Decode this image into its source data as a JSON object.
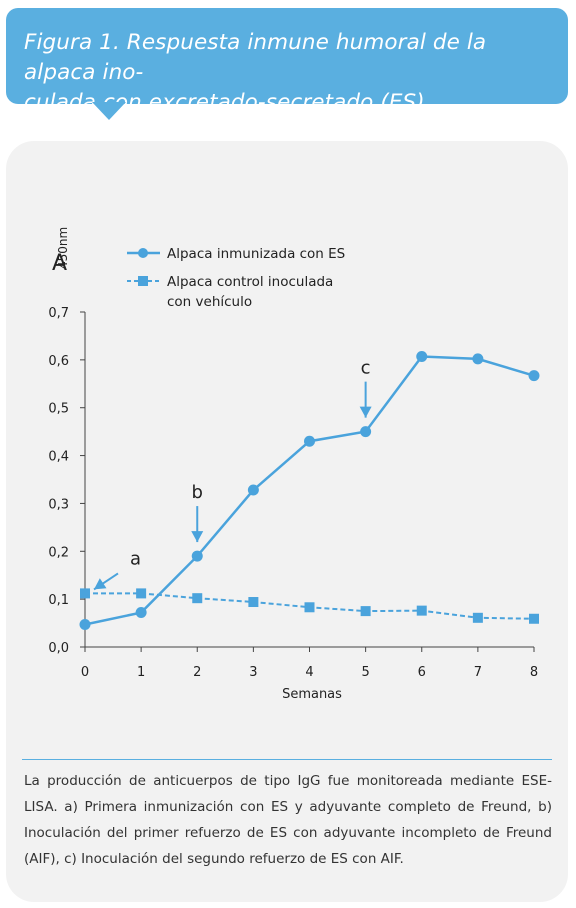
{
  "header": {
    "title_line1": "Figura 1. Respuesta inmune humoral de la alpaca ino-",
    "title_line2": "culada con excretado-secretado (ES)."
  },
  "colors": {
    "accent": "#5aafe0",
    "panel": "#f2f2f2",
    "series": "#4aa3dc"
  },
  "chart_data": {
    "type": "line",
    "ylabel_main": "A",
    "ylabel_sub": "450nm",
    "xlabel": "Semanas",
    "xlim": [
      0,
      8
    ],
    "ylim": [
      0,
      0.7
    ],
    "xticks": [
      "0",
      "1",
      "2",
      "3",
      "4",
      "5",
      "6",
      "7",
      "8"
    ],
    "yticks": [
      "0,0",
      "0,1",
      "0,2",
      "0,3",
      "0,4",
      "0,5",
      "0,6",
      "0,7"
    ],
    "yvalues": [
      0,
      0.1,
      0.2,
      0.3,
      0.4,
      0.5,
      0.6,
      0.7
    ],
    "legend_position": "top-left",
    "series": [
      {
        "name": "Alpaca inmunizada con ES",
        "marker": "circle",
        "style": "solid",
        "x": [
          0,
          1,
          2,
          3,
          4,
          5,
          6,
          7,
          8
        ],
        "y": [
          0.047,
          0.072,
          0.19,
          0.328,
          0.43,
          0.45,
          0.607,
          0.602,
          0.567
        ]
      },
      {
        "name_line1": "Alpaca control inoculada",
        "name_line2": "con vehículo",
        "marker": "square",
        "style": "dashed",
        "x": [
          0,
          1,
          2,
          3,
          4,
          5,
          6,
          7,
          8
        ],
        "y": [
          0.112,
          0.112,
          0.102,
          0.094,
          0.083,
          0.075,
          0.076,
          0.061,
          0.059
        ]
      }
    ],
    "annotations": [
      {
        "label": "a",
        "x": 0,
        "y": 0.112,
        "direction": "diagonal"
      },
      {
        "label": "b",
        "x": 2,
        "y": 0.19,
        "direction": "down"
      },
      {
        "label": "c",
        "x": 5,
        "y": 0.45,
        "direction": "down"
      }
    ]
  },
  "caption": "La producción de anticuerpos de tipo IgG fue monitoreada mediante ESE-LISA. a) Primera inmunización con ES y adyuvante completo de Freund, b) Inoculación del primer refuerzo de ES con adyuvante incompleto de Freund (AIF), c) Inoculación del segundo refuerzo de ES con AIF."
}
